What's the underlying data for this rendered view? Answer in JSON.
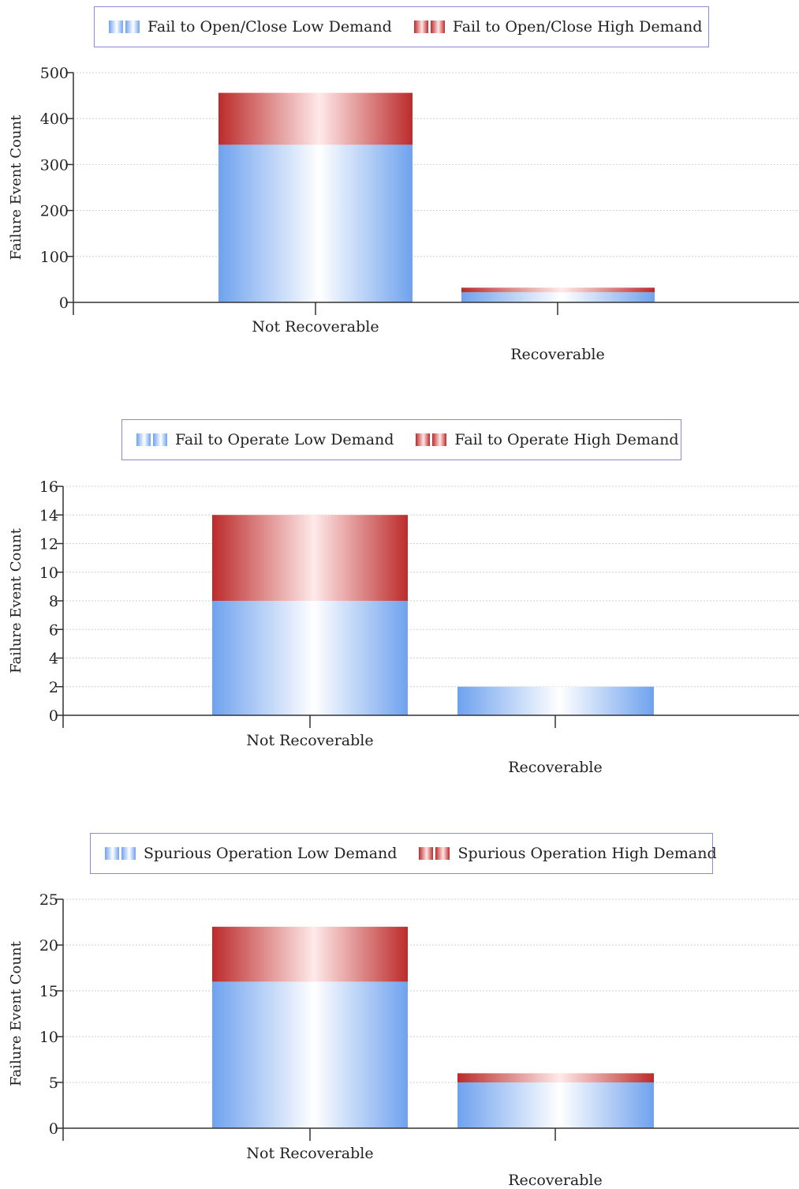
{
  "chart_data": [
    {
      "type": "bar",
      "stacked": true,
      "categories": [
        "Not Recoverable",
        "Recoverable"
      ],
      "series": [
        {
          "name": "Fail to Open/Close Low Demand",
          "values": [
            343,
            22
          ]
        },
        {
          "name": "Fail to Open/Close High Demand",
          "values": [
            113,
            10
          ]
        }
      ],
      "ylabel": "Failure Event Count",
      "ylim": [
        0,
        500
      ],
      "yticks": [
        0,
        100,
        200,
        300,
        400,
        500
      ],
      "grid": true,
      "legend": "top"
    },
    {
      "type": "bar",
      "stacked": true,
      "categories": [
        "Not Recoverable",
        "Recoverable"
      ],
      "series": [
        {
          "name": "Fail to Operate Low Demand",
          "values": [
            8,
            2
          ]
        },
        {
          "name": "Fail to Operate High Demand",
          "values": [
            6,
            0
          ]
        }
      ],
      "ylabel": "Failure Event Count",
      "ylim": [
        0,
        16
      ],
      "yticks": [
        0,
        2,
        4,
        6,
        8,
        10,
        12,
        14,
        16
      ],
      "grid": true,
      "legend": "top"
    },
    {
      "type": "bar",
      "stacked": true,
      "categories": [
        "Not Recoverable",
        "Recoverable"
      ],
      "series": [
        {
          "name": "Spurious Operation Low Demand",
          "values": [
            16,
            5
          ]
        },
        {
          "name": "Spurious Operation High Demand",
          "values": [
            6,
            1
          ]
        }
      ],
      "ylabel": "Failure Event Count",
      "ylim": [
        0,
        25
      ],
      "yticks": [
        0,
        5,
        10,
        15,
        20,
        25
      ],
      "grid": true,
      "legend": "top"
    }
  ],
  "colors": {
    "low_demand": "#6fa2ee",
    "high_demand": "#bc2b2b",
    "legend_border": "#8a8ad8",
    "grid": "#cfcfcf"
  }
}
